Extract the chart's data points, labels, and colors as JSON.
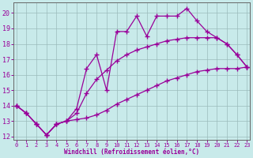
{
  "bg_color": "#c8eaea",
  "line_color": "#990099",
  "xlim": [
    -0.3,
    23.3
  ],
  "ylim": [
    11.8,
    20.7
  ],
  "xticks": [
    0,
    1,
    2,
    3,
    4,
    5,
    6,
    7,
    8,
    9,
    10,
    11,
    12,
    13,
    14,
    15,
    16,
    17,
    18,
    19,
    20,
    21,
    22,
    23
  ],
  "yticks": [
    12,
    13,
    14,
    15,
    16,
    17,
    18,
    19,
    20
  ],
  "xlabel": "Windchill (Refroidissement éolien,°C)",
  "line1_x": [
    0,
    1,
    2,
    3,
    4,
    5,
    6,
    7,
    8,
    9,
    10,
    11,
    12,
    13,
    14,
    15,
    16,
    17,
    18,
    19,
    20,
    21,
    22,
    23
  ],
  "line1_y": [
    14.0,
    13.5,
    12.8,
    12.1,
    12.8,
    13.0,
    13.1,
    13.2,
    13.4,
    13.7,
    14.1,
    14.4,
    14.7,
    15.0,
    15.3,
    15.6,
    15.8,
    16.0,
    16.2,
    16.3,
    16.4,
    16.4,
    16.4,
    16.5
  ],
  "line2_x": [
    0,
    1,
    2,
    3,
    4,
    5,
    6,
    7,
    8,
    9,
    10,
    11,
    12,
    13,
    14,
    15,
    16,
    17,
    18,
    19,
    20,
    21,
    22,
    23
  ],
  "line2_y": [
    14.0,
    13.5,
    12.8,
    12.1,
    12.8,
    13.0,
    13.5,
    14.8,
    15.7,
    16.3,
    16.9,
    17.3,
    17.6,
    17.8,
    18.0,
    18.2,
    18.3,
    18.4,
    18.4,
    18.4,
    18.4,
    18.0,
    17.3,
    16.5
  ],
  "line3_x": [
    0,
    1,
    2,
    3,
    4,
    5,
    6,
    7,
    8,
    9,
    10,
    11,
    12,
    13,
    14,
    15,
    16,
    17,
    18,
    19,
    20,
    21,
    22,
    23
  ],
  "line3_y": [
    14.0,
    13.5,
    12.8,
    12.1,
    12.8,
    13.0,
    13.8,
    16.4,
    17.3,
    15.0,
    18.8,
    18.8,
    19.8,
    18.5,
    19.8,
    19.8,
    19.8,
    20.3,
    19.5,
    18.8,
    18.4,
    18.0,
    17.3,
    16.5
  ]
}
